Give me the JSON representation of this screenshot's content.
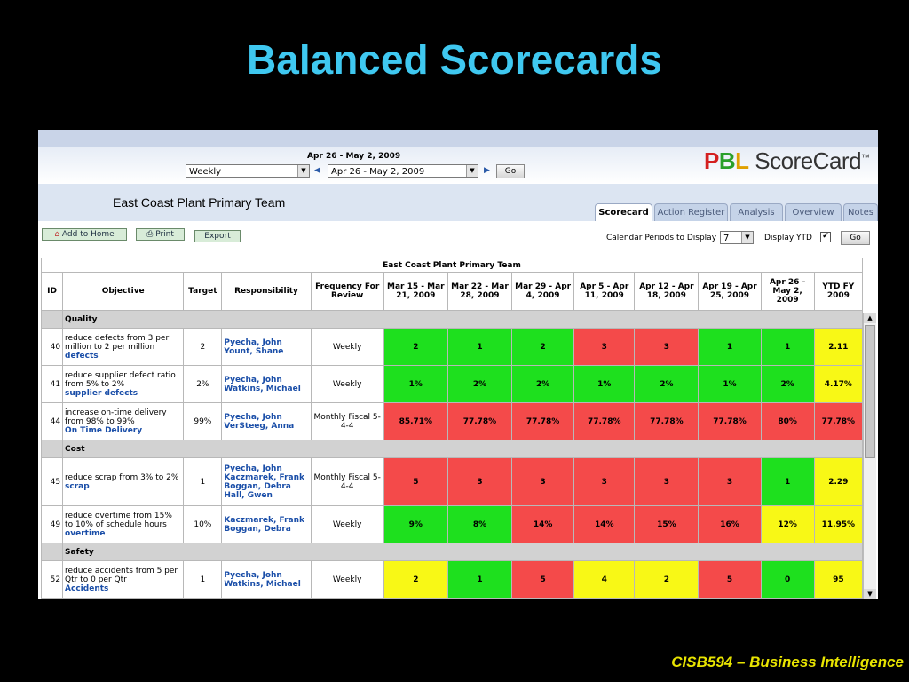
{
  "slide": {
    "title": "Balanced Scorecards",
    "footer": "CISB594 – Business Intelligence"
  },
  "app": {
    "period_label": "Apr 26 - May 2, 2009",
    "frequency_value": "Weekly",
    "period_value": "Apr 26 - May 2, 2009",
    "go_label": "Go",
    "logo": {
      "p": "P",
      "b": "B",
      "l": "L",
      "rest": "ScoreCard",
      "tm": "™"
    },
    "team_title": "East Coast Plant Primary Team",
    "tabs": [
      "Scorecard",
      "Action Register",
      "Analysis",
      "Overview",
      "Notes"
    ],
    "toolbar": {
      "add_home": "Add to Home",
      "print": "Print",
      "export": "Export"
    },
    "calendar_periods_label": "Calendar Periods to Display",
    "calendar_periods_value": "7",
    "display_ytd_label": "Display YTD",
    "display_ytd_checked": "✔"
  },
  "table": {
    "caption": "East Coast Plant Primary Team",
    "headers": [
      "ID",
      "Objective",
      "Target",
      "Responsibility",
      "Frequency For Review",
      "Mar 15 - Mar 21, 2009",
      "Mar 22 - Mar 28, 2009",
      "Mar 29 - Apr 4, 2009",
      "Apr 5 - Apr 11, 2009",
      "Apr 12 - Apr 18, 2009",
      "Apr 19 - Apr 25, 2009",
      "Apr 26 - May 2, 2009",
      "YTD FY 2009"
    ],
    "sections": {
      "quality": "Quality",
      "cost": "Cost",
      "safety": "Safety"
    },
    "rows": [
      {
        "id": "40",
        "obj": "reduce defects from 3 per million to 2 per million",
        "link": "defects",
        "target": "2",
        "resp": "Pyecha, John Yount, Shane",
        "freq": "Weekly",
        "vals": [
          "2",
          "1",
          "2",
          "3",
          "3",
          "1",
          "1",
          "2.11"
        ],
        "colors": [
          "#1ee01e",
          "#1ee01e",
          "#1ee01e",
          "#f44a4a",
          "#f44a4a",
          "#1ee01e",
          "#1ee01e",
          "#f8f816"
        ]
      },
      {
        "id": "41",
        "obj": "reduce supplier defect ratio from 5% to 2%",
        "link": "supplier defects",
        "target": "2%",
        "resp": "Pyecha, John Watkins, Michael",
        "freq": "Weekly",
        "vals": [
          "1%",
          "2%",
          "2%",
          "1%",
          "2%",
          "1%",
          "2%",
          "4.17%"
        ],
        "colors": [
          "#1ee01e",
          "#1ee01e",
          "#1ee01e",
          "#1ee01e",
          "#1ee01e",
          "#1ee01e",
          "#1ee01e",
          "#f8f816"
        ]
      },
      {
        "id": "44",
        "obj": "increase on-time delivery from 98% to 99%",
        "link": "On Time Delivery",
        "target": "99%",
        "resp": "Pyecha, John VerSteeg, Anna",
        "freq": "Monthly Fiscal 5-4-4",
        "vals": [
          "85.71%",
          "77.78%",
          "77.78%",
          "77.78%",
          "77.78%",
          "77.78%",
          "80%",
          "77.78%"
        ],
        "colors": [
          "#f44a4a",
          "#f44a4a",
          "#f44a4a",
          "#f44a4a",
          "#f44a4a",
          "#f44a4a",
          "#f44a4a",
          "#f44a4a"
        ]
      },
      {
        "id": "45",
        "obj": "reduce scrap from 3% to 2%",
        "link": "scrap",
        "target": "1",
        "resp": "Pyecha, John Kaczmarek, Frank Boggan, Debra Hall, Gwen",
        "freq": "Monthly Fiscal 5-4-4",
        "vals": [
          "5",
          "3",
          "3",
          "3",
          "3",
          "3",
          "1",
          "2.29"
        ],
        "colors": [
          "#f44a4a",
          "#f44a4a",
          "#f44a4a",
          "#f44a4a",
          "#f44a4a",
          "#f44a4a",
          "#1ee01e",
          "#f8f816"
        ]
      },
      {
        "id": "49",
        "obj": "reduce overtime from 15% to 10% of schedule hours",
        "link": "overtime",
        "target": "10%",
        "resp": "Kaczmarek, Frank Boggan, Debra",
        "freq": "Weekly",
        "vals": [
          "9%",
          "8%",
          "14%",
          "14%",
          "15%",
          "16%",
          "12%",
          "11.95%"
        ],
        "colors": [
          "#1ee01e",
          "#1ee01e",
          "#f44a4a",
          "#f44a4a",
          "#f44a4a",
          "#f44a4a",
          "#f8f816",
          "#f8f816"
        ]
      },
      {
        "id": "52",
        "obj": "reduce accidents from 5 per Qtr to 0 per Qtr",
        "link": "Accidents",
        "target": "1",
        "resp": "Pyecha, John Watkins, Michael",
        "freq": "Weekly",
        "vals": [
          "2",
          "1",
          "5",
          "4",
          "2",
          "5",
          "0",
          "95"
        ],
        "colors": [
          "#f8f816",
          "#1ee01e",
          "#f44a4a",
          "#f8f816",
          "#f8f816",
          "#f44a4a",
          "#1ee01e",
          "#f8f816"
        ]
      }
    ]
  }
}
